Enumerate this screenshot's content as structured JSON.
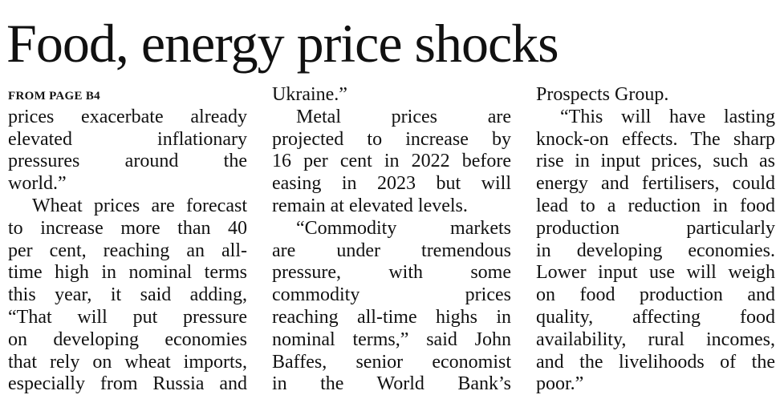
{
  "headline": "Food, energy price shocks",
  "kicker": "FROM PAGE B4",
  "columns": [
    {
      "blocks": [
        {
          "lines": [
            "prices exacerbate already",
            "elevated inflationary",
            "pressures around the",
            "world.”"
          ]
        },
        {
          "lines": [
            "Wheat prices are forecast",
            "to increase more than 40",
            "per cent, reaching an all-",
            "time high in nominal terms",
            "this year, it said adding,",
            "“That will put pressure",
            "on developing economies",
            "that rely on wheat imports,",
            "especially from Russia and"
          ]
        }
      ]
    },
    {
      "blocks": [
        {
          "lines": [
            "Ukraine.”"
          ]
        },
        {
          "lines": [
            "Metal prices are",
            "projected to increase by",
            "16 per cent in 2022 before",
            "easing in 2023 but will",
            "remain at elevated levels."
          ]
        },
        {
          "lines": [
            "“Commodity markets",
            "are under tremendous",
            "pressure, with some",
            "commodity prices",
            "reaching all-time highs in",
            "nominal terms,” said John",
            "Baffes, senior economist",
            "in the World Bank’s"
          ]
        }
      ]
    },
    {
      "blocks": [
        {
          "lines": [
            "Prospects Group."
          ]
        },
        {
          "lines": [
            "“This will have lasting",
            "knock-on effects. The sharp",
            "rise in input prices, such as",
            "energy and fertilisers, could",
            "lead to a reduction in food",
            "production particularly",
            "in developing economies.",
            "Lower input use will weigh",
            "on food production and",
            "quality, affecting food",
            "availability, rural incomes,",
            "and the livelihoods of the",
            "poor.”"
          ]
        }
      ]
    }
  ]
}
